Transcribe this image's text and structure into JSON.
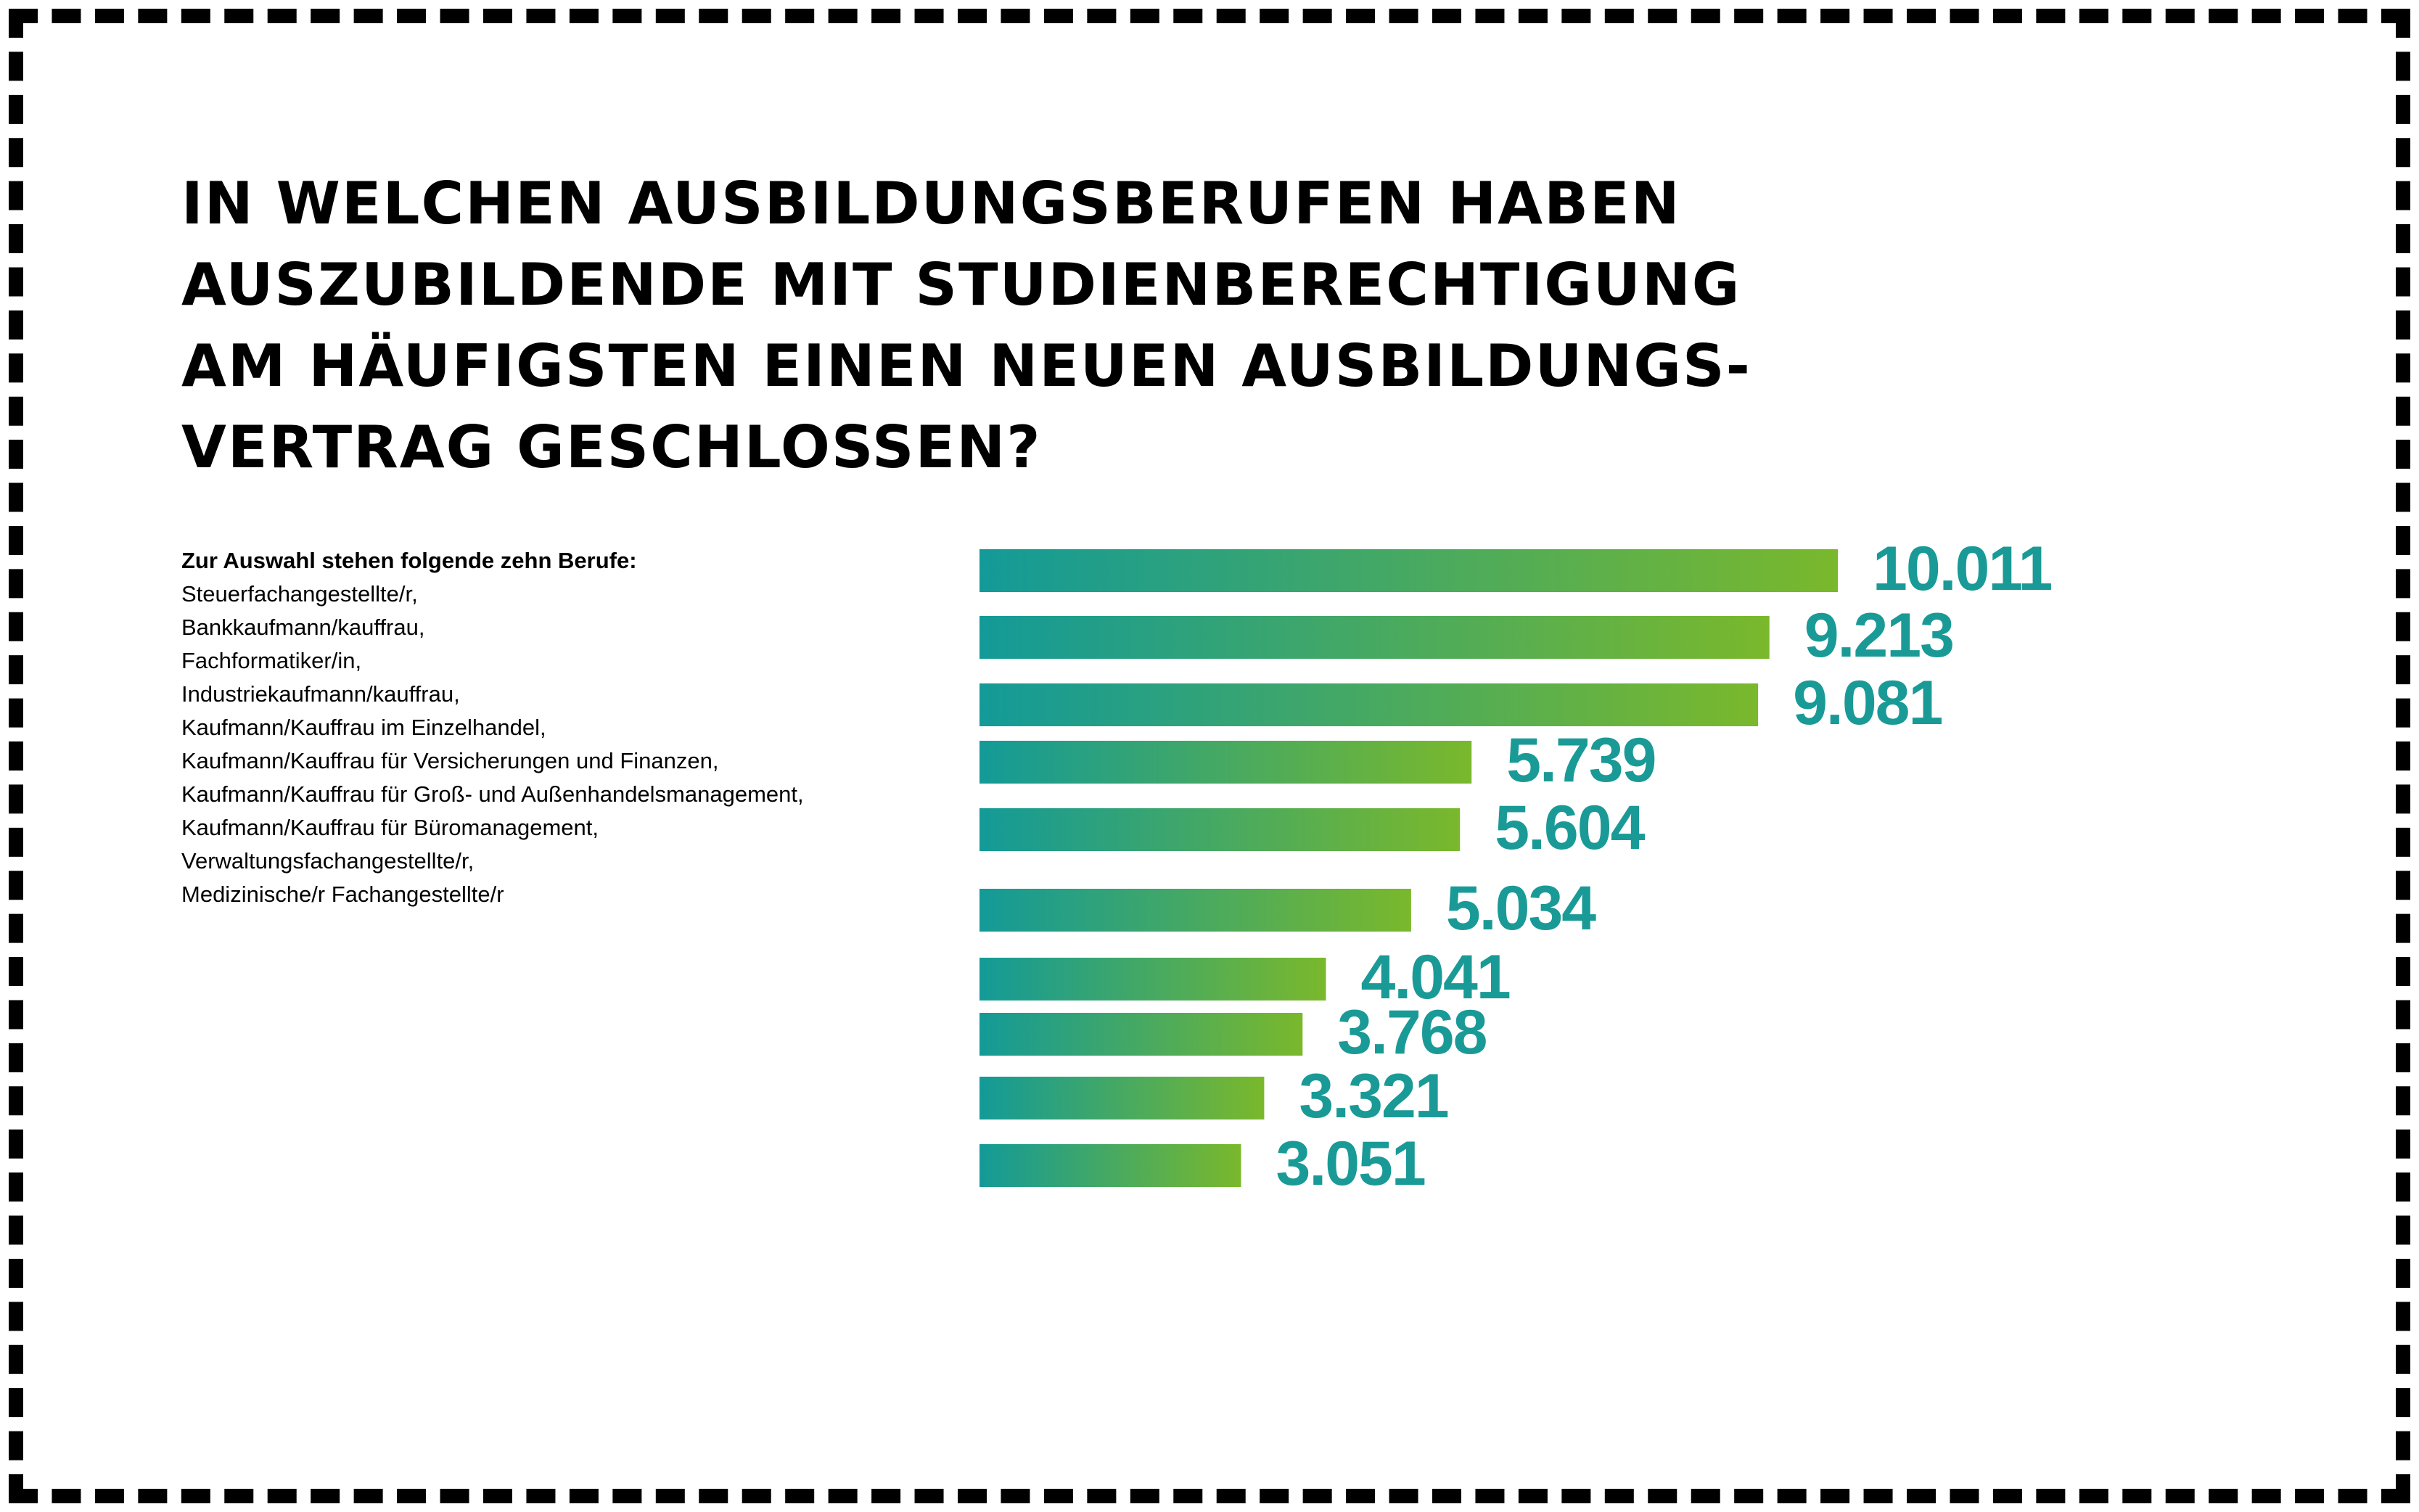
{
  "title_lines": [
    "IN WELCHEN AUSBILDUNGSBERUFEN HABEN",
    "AUSZUBILDENDE MIT STUDIENBERECHTIGUNG",
    "AM HÄUFIGSTEN EINEN NEUEN AUSBILDUNGS-",
    "VERTRAG GESCHLOSSEN?"
  ],
  "legend": {
    "heading": "Zur Auswahl stehen folgende zehn Berufe:",
    "items": [
      "Steuerfachangestellte/r,",
      "Bankkaufmann/kauffrau,",
      "Fachformatiker/in,",
      "Industriekaufmann/kauffrau,",
      "Kaufmann/Kauffrau im Einzelhandel,",
      "Kaufmann/Kauffrau für Versicherungen und Finanzen,",
      "Kaufmann/Kauffrau für Groß- und Außenhandelsmanagement,",
      "Kaufmann/Kauffrau für Büromanagement,",
      "Verwaltungsfachangestellte/r,",
      "Medizinische/r Fachangestellte/r"
    ]
  },
  "colors": {
    "bar_start": "#139a98",
    "bar_end": "#7ab82c",
    "value_label": "#1a9a96",
    "frame": "#000000"
  },
  "chart_data": {
    "type": "bar",
    "orientation": "horizontal",
    "values": [
      10011,
      9213,
      9081,
      5739,
      5604,
      5034,
      4041,
      3768,
      3321,
      3051
    ],
    "value_labels": [
      "10.011",
      "9.213",
      "9.081",
      "5.739",
      "5.604",
      "5.034",
      "4.041",
      "3.768",
      "3.321",
      "3.051"
    ],
    "xlim": [
      0,
      10011
    ],
    "grid": false,
    "axes_visible": false
  }
}
